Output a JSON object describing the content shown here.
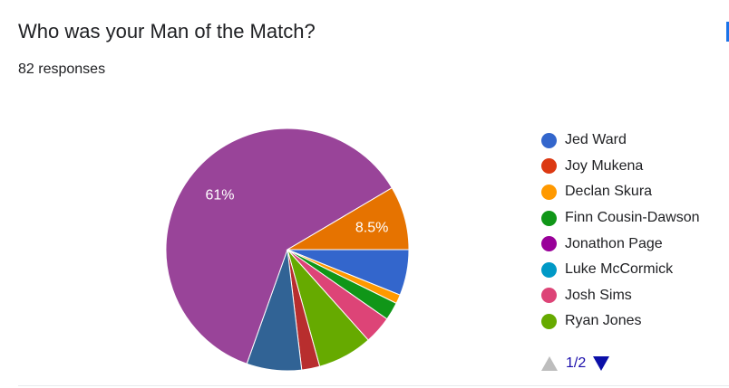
{
  "question": {
    "title": "Who was your Man of the Match?",
    "responses_label": "82 responses"
  },
  "chart_data": {
    "type": "pie",
    "title": "",
    "slices": [
      {
        "label": "Jed Ward",
        "percent": 6.1,
        "color": "#3366cc"
      },
      {
        "label": "",
        "percent": 1.2,
        "color": "#ff9900"
      },
      {
        "label": "",
        "percent": 2.4,
        "color": "#109618"
      },
      {
        "label": "",
        "percent": 3.7,
        "color": "#dd4477"
      },
      {
        "label": "",
        "percent": 7.3,
        "color": "#66aa00"
      },
      {
        "label": "",
        "percent": 2.4,
        "color": "#b82e2e"
      },
      {
        "label": "",
        "percent": 7.3,
        "color": "#316395"
      },
      {
        "label": "Jonathon Page",
        "percent": 61.0,
        "color": "#994499"
      },
      {
        "label": "",
        "percent": 8.5,
        "color": "#e67300"
      }
    ],
    "data_labels": [
      {
        "text": "61%",
        "slice_index": 7
      },
      {
        "text": "8.5%",
        "slice_index": 8
      }
    ],
    "legend_placement": "right"
  },
  "legend": {
    "items": [
      {
        "label": "Jed Ward",
        "color": "#3366cc"
      },
      {
        "label": "Joy Mukena",
        "color": "#dc3912"
      },
      {
        "label": "Declan Skura",
        "color": "#ff9900"
      },
      {
        "label": "Finn Cousin-Dawson",
        "color": "#109618"
      },
      {
        "label": "Jonathon Page",
        "color": "#990099"
      },
      {
        "label": "Luke McCormick",
        "color": "#0099c6"
      },
      {
        "label": "Josh Sims",
        "color": "#dd4477"
      },
      {
        "label": "Ryan Jones",
        "color": "#66aa00"
      }
    ]
  },
  "pager": {
    "text": "1/2",
    "prev_icon": "triangle-up-icon",
    "next_icon": "triangle-down-icon"
  }
}
